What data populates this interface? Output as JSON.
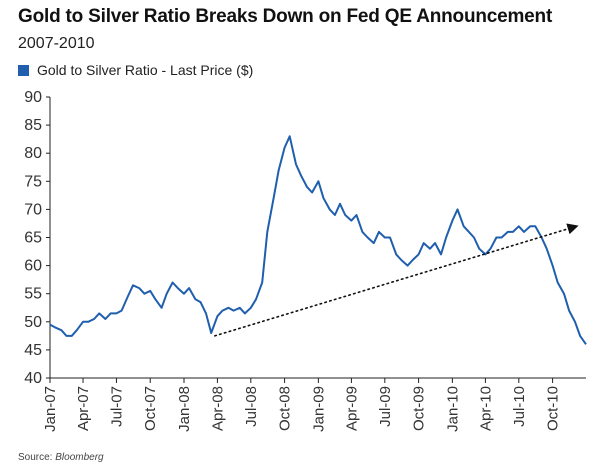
{
  "header": {
    "title": "Gold to Silver Ratio Breaks Down on Fed QE Announcement",
    "subtitle": "2007-2010"
  },
  "footer": {
    "source_prefix": "Source: ",
    "source_name": "Bloomberg"
  },
  "colors": {
    "series": "#1f5fae",
    "axis": "#222222",
    "trend": "#111111"
  },
  "chart_data": {
    "type": "line",
    "title": "Gold to Silver Ratio Breaks Down on Fed QE Announcement",
    "subtitle": "2007-2010",
    "xlabel": "",
    "ylabel": "",
    "ylim": [
      40,
      90
    ],
    "yticks": [
      40,
      45,
      50,
      55,
      60,
      65,
      70,
      75,
      80,
      85,
      90
    ],
    "xlim": [
      "2007-01-01",
      "2010-12-31"
    ],
    "xticks": [
      {
        "label": "Jan-07",
        "date": "2007-01-01"
      },
      {
        "label": "Apr-07",
        "date": "2007-04-01"
      },
      {
        "label": "Jul-07",
        "date": "2007-07-01"
      },
      {
        "label": "Oct-07",
        "date": "2007-10-01"
      },
      {
        "label": "Jan-08",
        "date": "2008-01-01"
      },
      {
        "label": "Apr-08",
        "date": "2008-04-01"
      },
      {
        "label": "Jul-08",
        "date": "2008-07-01"
      },
      {
        "label": "Oct-08",
        "date": "2008-10-01"
      },
      {
        "label": "Jan-09",
        "date": "2009-01-01"
      },
      {
        "label": "Apr-09",
        "date": "2009-04-01"
      },
      {
        "label": "Jul-09",
        "date": "2009-07-01"
      },
      {
        "label": "Oct-09",
        "date": "2009-10-01"
      },
      {
        "label": "Jan-10",
        "date": "2010-01-01"
      },
      {
        "label": "Apr-10",
        "date": "2010-04-01"
      },
      {
        "label": "Jul-10",
        "date": "2010-07-01"
      },
      {
        "label": "Oct-10",
        "date": "2010-10-01"
      }
    ],
    "grid": false,
    "legend": "top-left",
    "series": [
      {
        "name": "Gold to Silver Ratio - Last Price ($)",
        "x": [
          "2007-01-01",
          "2007-01-15",
          "2007-02-01",
          "2007-02-15",
          "2007-03-01",
          "2007-03-15",
          "2007-04-01",
          "2007-04-15",
          "2007-05-01",
          "2007-05-15",
          "2007-06-01",
          "2007-06-15",
          "2007-07-01",
          "2007-07-15",
          "2007-08-01",
          "2007-08-15",
          "2007-09-01",
          "2007-09-15",
          "2007-10-01",
          "2007-10-15",
          "2007-11-01",
          "2007-11-15",
          "2007-12-01",
          "2007-12-15",
          "2008-01-01",
          "2008-01-15",
          "2008-02-01",
          "2008-02-15",
          "2008-03-01",
          "2008-03-15",
          "2008-04-01",
          "2008-04-15",
          "2008-05-01",
          "2008-05-15",
          "2008-06-01",
          "2008-06-15",
          "2008-07-01",
          "2008-07-15",
          "2008-08-01",
          "2008-08-15",
          "2008-09-01",
          "2008-09-15",
          "2008-10-01",
          "2008-10-15",
          "2008-11-01",
          "2008-11-15",
          "2008-12-01",
          "2008-12-15",
          "2009-01-01",
          "2009-01-15",
          "2009-02-01",
          "2009-02-15",
          "2009-03-01",
          "2009-03-15",
          "2009-04-01",
          "2009-04-15",
          "2009-05-01",
          "2009-05-15",
          "2009-06-01",
          "2009-06-15",
          "2009-07-01",
          "2009-07-15",
          "2009-08-01",
          "2009-08-15",
          "2009-09-01",
          "2009-09-15",
          "2009-10-01",
          "2009-10-15",
          "2009-11-01",
          "2009-11-15",
          "2009-12-01",
          "2009-12-15",
          "2010-01-01",
          "2010-01-15",
          "2010-02-01",
          "2010-02-15",
          "2010-03-01",
          "2010-03-15",
          "2010-04-01",
          "2010-04-15",
          "2010-05-01",
          "2010-05-15",
          "2010-06-01",
          "2010-06-15",
          "2010-07-01",
          "2010-07-15",
          "2010-08-01",
          "2010-08-15",
          "2010-09-01",
          "2010-09-15",
          "2010-10-01",
          "2010-10-15",
          "2010-11-01",
          "2010-11-15",
          "2010-12-01",
          "2010-12-15",
          "2010-12-31"
        ],
        "values": [
          49.5,
          49,
          48.5,
          47.5,
          47.5,
          48.5,
          50,
          50,
          50.5,
          51.5,
          50.5,
          51.5,
          51.5,
          52,
          54.5,
          56.5,
          56,
          55,
          55.5,
          54,
          52.5,
          55,
          57,
          56,
          55,
          56,
          54,
          53.5,
          51.5,
          48,
          51,
          52,
          52.5,
          52,
          52.5,
          51.5,
          52.5,
          54,
          57,
          66,
          72,
          77,
          81,
          83,
          78,
          76,
          74,
          73,
          75,
          72,
          70,
          69,
          71,
          69,
          68,
          69,
          66,
          65,
          64,
          66,
          65,
          65,
          62,
          61,
          60,
          61,
          62,
          64,
          63,
          64,
          62,
          65,
          68,
          70,
          67,
          66,
          65,
          63,
          62,
          63,
          65,
          65,
          66,
          66,
          67,
          66,
          67,
          67,
          65,
          63,
          60,
          57,
          55,
          52,
          50,
          47.5,
          46
        ]
      }
    ],
    "trendline": {
      "from": {
        "x": "2008-03-25",
        "y": 47.5
      },
      "to": {
        "x": "2010-12-05",
        "y": 67
      },
      "style": "dotted",
      "arrow": true
    }
  }
}
